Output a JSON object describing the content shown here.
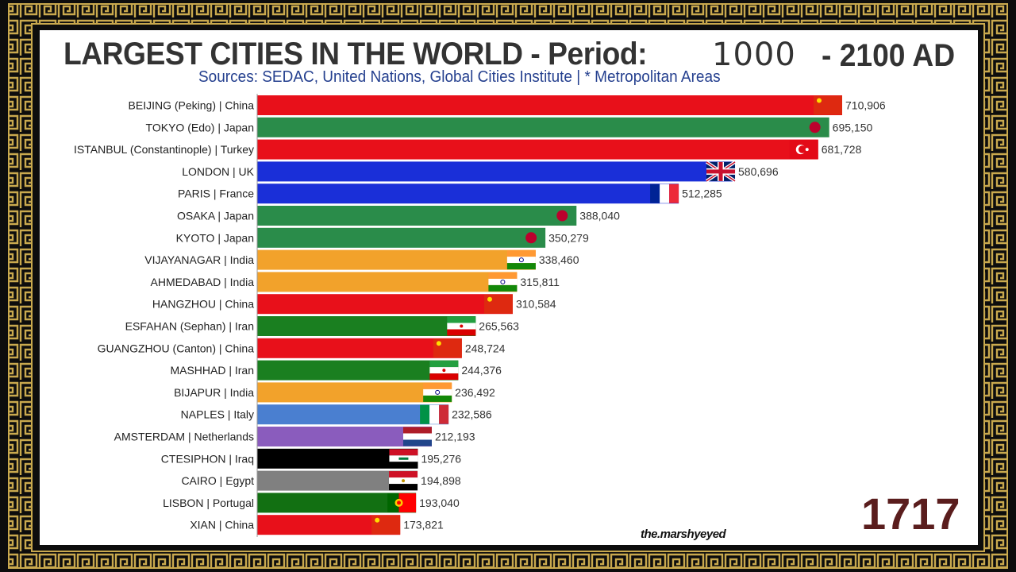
{
  "header": {
    "title_main": "LARGEST CITIES IN THE WORLD - Period:",
    "title_year": "1000",
    "title_end": "- 2100 AD",
    "subtitle": "Sources: SEDAC, United Nations, Global Cities Institute | * Metropolitan Areas"
  },
  "period_year": "1717",
  "watermark": "the.marshyeyed",
  "chart_data": {
    "type": "bar",
    "orientation": "horizontal",
    "title": "LARGEST CITIES IN THE WORLD - Period: 1000 - 2100 AD",
    "categories": [
      "BEIJING (Peking) | China",
      "TOKYO (Edo) | Japan",
      "ISTANBUL (Constantinople) | Turkey",
      "LONDON | UK",
      "PARIS | France",
      "OSAKA | Japan",
      "KYOTO | Japan",
      "VIJAYANAGAR | India",
      "AHMEDABAD | India",
      "HANGZHOU | China",
      "ESFAHAN (Sephan) | Iran",
      "GUANGZHOU (Canton) | China",
      "MASHHAD | Iran",
      "BIJAPUR | India",
      "NAPLES | Italy",
      "AMSTERDAM | Netherlands",
      "CTESIPHON | Iraq",
      "CAIRO | Egypt",
      "LISBON | Portugal",
      "XIAN | China"
    ],
    "values": [
      710906,
      695150,
      681728,
      580696,
      512285,
      388040,
      350279,
      338460,
      315811,
      310584,
      265563,
      248724,
      244376,
      236492,
      232586,
      212193,
      195276,
      194898,
      193040,
      173821
    ],
    "value_labels": [
      "710,906",
      "695,150",
      "681,728",
      "580,696",
      "512,285",
      "388,040",
      "350,279",
      "338,460",
      "315,811",
      "310,584",
      "265,563",
      "248,724",
      "244,376",
      "236,492",
      "232,586",
      "212,193",
      "195,276",
      "194,898",
      "193,040",
      "173,821"
    ],
    "bar_colors": [
      "#e8101a",
      "#2a8c4a",
      "#e8101a",
      "#1a2fd8",
      "#1a2fd8",
      "#2a8c4a",
      "#2a8c4a",
      "#f2a22b",
      "#f2a22b",
      "#e8101a",
      "#1a7f20",
      "#e8101a",
      "#1a7f20",
      "#f2a22b",
      "#4a7fd0",
      "#8a5cbd",
      "#000000",
      "#808080",
      "#127012",
      "#e8101a"
    ],
    "flags": [
      "china",
      "japan",
      "turkey",
      "uk",
      "france",
      "japan",
      "japan",
      "india",
      "india",
      "china",
      "iran",
      "china",
      "iran",
      "india",
      "italy",
      "netherlands",
      "iraq",
      "egypt",
      "portugal",
      "china"
    ],
    "grid": false
  }
}
